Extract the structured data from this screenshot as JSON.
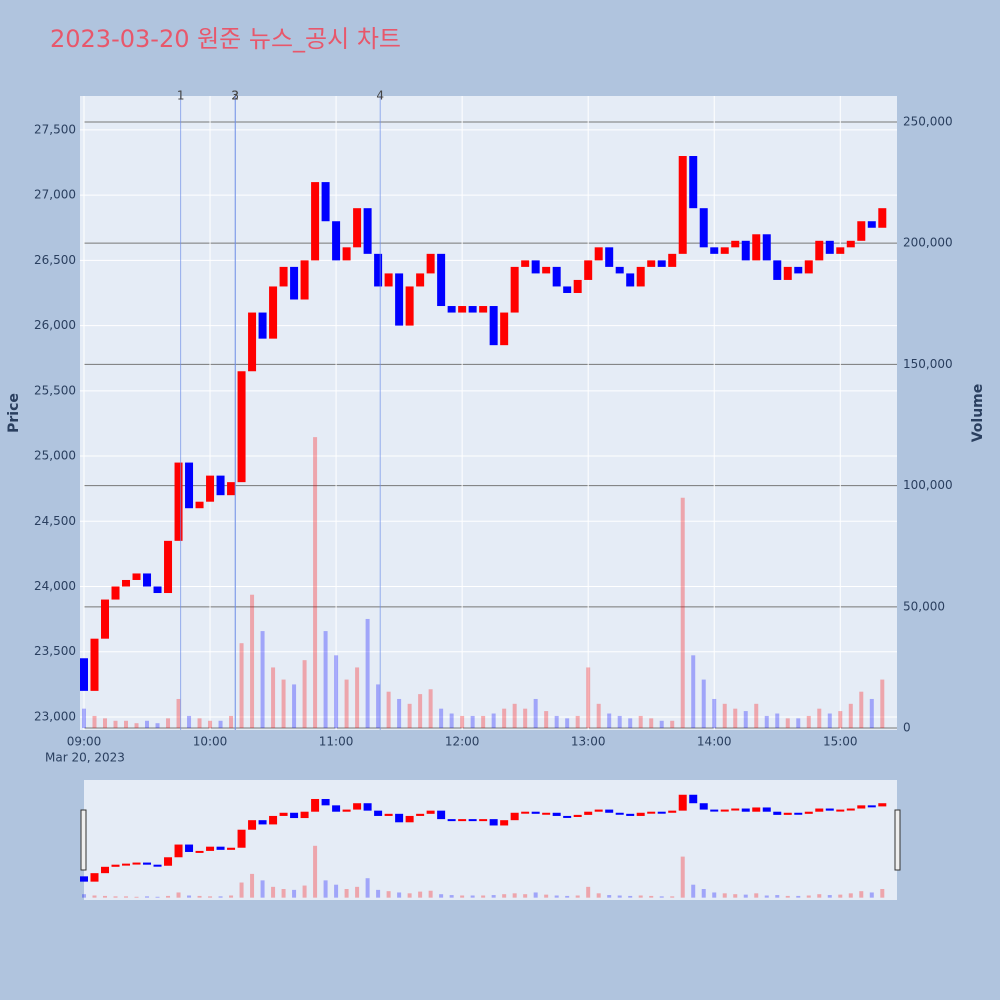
{
  "chart_data": {
    "type": "candlestick",
    "title": "2023-03-20 원준 뉴스_공시 차트",
    "y_title": "Price",
    "y2_title": "Volume",
    "x_date_label": "Mar 20, 2023",
    "up_color": "#ff0000",
    "down_color": "#0000ff",
    "x": [
      "09:00",
      "09:05",
      "09:10",
      "09:15",
      "09:20",
      "09:25",
      "09:30",
      "09:35",
      "09:40",
      "09:45",
      "09:50",
      "09:55",
      "10:00",
      "10:05",
      "10:10",
      "10:15",
      "10:20",
      "10:25",
      "10:30",
      "10:35",
      "10:40",
      "10:45",
      "10:50",
      "10:55",
      "11:00",
      "11:05",
      "11:10",
      "11:15",
      "11:20",
      "11:25",
      "11:30",
      "11:35",
      "11:40",
      "11:45",
      "11:50",
      "11:55",
      "12:00",
      "12:05",
      "12:10",
      "12:15",
      "12:20",
      "12:25",
      "12:30",
      "12:35",
      "12:40",
      "12:45",
      "12:50",
      "12:55",
      "13:00",
      "13:05",
      "13:10",
      "13:15",
      "13:20",
      "13:25",
      "13:30",
      "13:35",
      "13:40",
      "13:45",
      "13:50",
      "13:55",
      "14:00",
      "14:05",
      "14:10",
      "14:15",
      "14:20",
      "14:25",
      "14:30",
      "14:35",
      "14:40",
      "14:45",
      "14:50",
      "14:55",
      "15:00",
      "15:05",
      "15:10",
      "15:15",
      "15:20"
    ],
    "open": [
      23450,
      23200,
      23600,
      23900,
      24000,
      24050,
      24100,
      24000,
      23950,
      24350,
      24950,
      24600,
      24650,
      24850,
      24700,
      24800,
      25650,
      26100,
      25900,
      26300,
      26450,
      26200,
      26500,
      27100,
      26800,
      26500,
      26600,
      26900,
      26550,
      26300,
      26400,
      26000,
      26300,
      26400,
      26550,
      26150,
      26100,
      26150,
      26100,
      26150,
      25850,
      26100,
      26450,
      26500,
      26400,
      26450,
      26300,
      26250,
      26350,
      26500,
      26600,
      26450,
      26400,
      26300,
      26450,
      26500,
      26450,
      26550,
      27300,
      26900,
      26600,
      26550,
      26600,
      26650,
      26500,
      26700,
      26500,
      26350,
      26450,
      26400,
      26500,
      26650,
      26550,
      26600,
      26650,
      26800,
      26750
    ],
    "close": [
      23200,
      23600,
      23900,
      24000,
      24050,
      24100,
      24000,
      23950,
      24350,
      24950,
      24600,
      24650,
      24850,
      24700,
      24800,
      25650,
      26100,
      25900,
      26300,
      26450,
      26200,
      26500,
      27100,
      26800,
      26500,
      26600,
      26900,
      26550,
      26300,
      26400,
      26000,
      26300,
      26400,
      26550,
      26150,
      26100,
      26150,
      26100,
      26150,
      25850,
      26100,
      26450,
      26500,
      26400,
      26450,
      26300,
      26250,
      26350,
      26500,
      26600,
      26450,
      26400,
      26300,
      26450,
      26500,
      26450,
      26550,
      27300,
      26900,
      26600,
      26550,
      26600,
      26650,
      26500,
      26700,
      26500,
      26350,
      26450,
      26400,
      26500,
      26650,
      26550,
      26600,
      26650,
      26800,
      26750,
      26900
    ],
    "volume": [
      8000,
      5000,
      4000,
      3000,
      3000,
      2000,
      3000,
      2000,
      4000,
      12000,
      5000,
      4000,
      3000,
      3000,
      5000,
      35000,
      55000,
      40000,
      25000,
      20000,
      18000,
      28000,
      120000,
      40000,
      30000,
      20000,
      25000,
      45000,
      18000,
      15000,
      12000,
      10000,
      14000,
      16000,
      8000,
      6000,
      5000,
      5000,
      5000,
      6000,
      8000,
      10000,
      8000,
      12000,
      7000,
      5000,
      4000,
      5000,
      25000,
      10000,
      6000,
      5000,
      4000,
      5000,
      4000,
      3000,
      3000,
      95000,
      30000,
      20000,
      12000,
      10000,
      8000,
      7000,
      10000,
      5000,
      6000,
      4000,
      4000,
      5000,
      8000,
      6000,
      7000,
      10000,
      15000,
      12000,
      20000
    ],
    "xlim": [
      "09:00",
      "15:27"
    ],
    "xticks": [
      "09:00",
      "10:00",
      "11:00",
      "12:00",
      "13:00",
      "14:00",
      "15:00"
    ],
    "ylim": [
      22900,
      27760
    ],
    "yticks": [
      {
        "value": 23000,
        "label": "23,000"
      },
      {
        "value": 23500,
        "label": "23,500"
      },
      {
        "value": 24000,
        "label": "24,000"
      },
      {
        "value": 24500,
        "label": "24,500"
      },
      {
        "value": 25000,
        "label": "25,000"
      },
      {
        "value": 25500,
        "label": "25,500"
      },
      {
        "value": 26000,
        "label": "26,000"
      },
      {
        "value": 26500,
        "label": "26,500"
      },
      {
        "value": 27000,
        "label": "27,000"
      },
      {
        "value": 27500,
        "label": "27,500"
      }
    ],
    "y2lim": [
      -800,
      260700
    ],
    "y2ticks": [
      0,
      {
        "value": 50000,
        "label": "50,000"
      },
      {
        "value": 100000,
        "label": "100,000"
      },
      {
        "value": 150000,
        "label": "150,000"
      },
      {
        "value": 200000,
        "label": "200,000"
      },
      {
        "value": 250000,
        "label": "250,000"
      }
    ],
    "annotations": [
      {
        "x": "09:46",
        "label": "1"
      },
      {
        "x": "10:12",
        "label": "2"
      },
      {
        "x": "10:12",
        "label": "3"
      },
      {
        "x": "11:21",
        "label": "4"
      }
    ]
  }
}
